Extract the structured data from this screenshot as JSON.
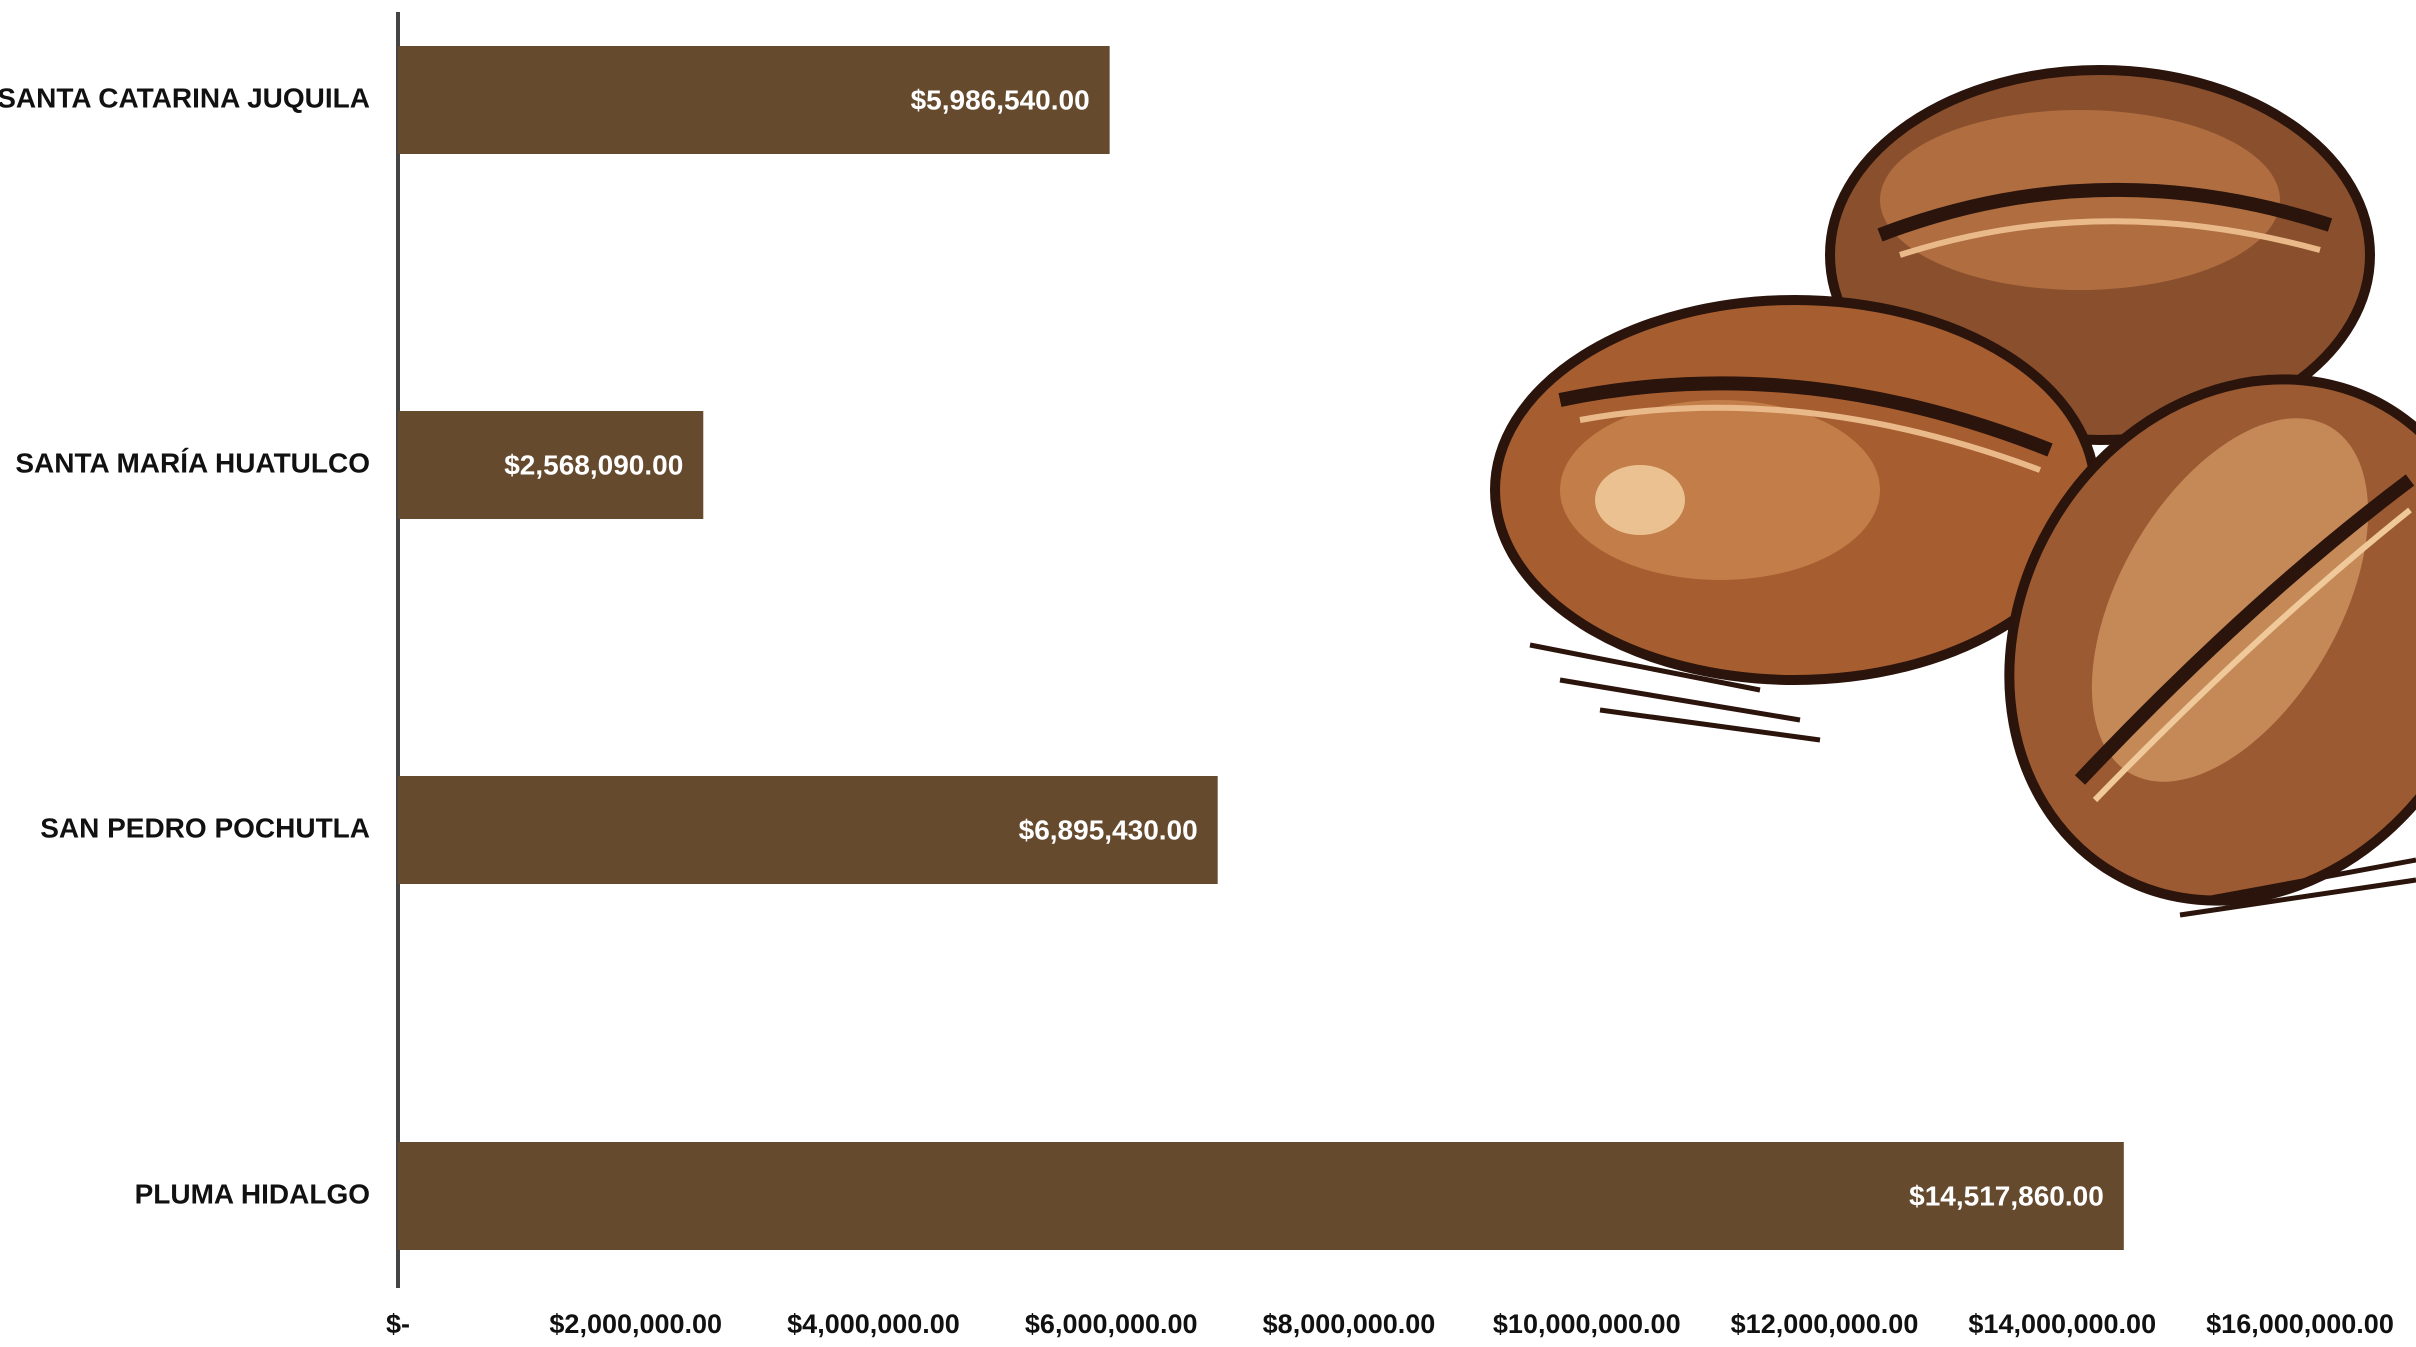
{
  "chart_data": {
    "type": "hbar",
    "categories": [
      "SANTA CATARINA JUQUILA",
      "SANTA MARÍA HUATULCO",
      "SAN PEDRO POCHUTLA",
      "PLUMA HIDALGO"
    ],
    "values": [
      5986540,
      2568090,
      6895430,
      14517860
    ],
    "value_labels": [
      "$5,986,540.00",
      "$2,568,090.00",
      "$6,895,430.00",
      "$14,517,860.00"
    ],
    "color": "#654a2e",
    "xlim": [
      0,
      16000000
    ],
    "xticks": [
      {
        "value": 0,
        "label": "$-"
      },
      {
        "value": 2000000,
        "label": "$2,000,000.00"
      },
      {
        "value": 4000000,
        "label": "$4,000,000.00"
      },
      {
        "value": 6000000,
        "label": "$6,000,000.00"
      },
      {
        "value": 8000000,
        "label": "$8,000,000.00"
      },
      {
        "value": 10000000,
        "label": "$10,000,000.00"
      },
      {
        "value": 12000000,
        "label": "$12,000,000.00"
      },
      {
        "value": 14000000,
        "label": "$14,000,000.00"
      },
      {
        "value": 16000000,
        "label": "$16,000,000.00"
      }
    ]
  }
}
